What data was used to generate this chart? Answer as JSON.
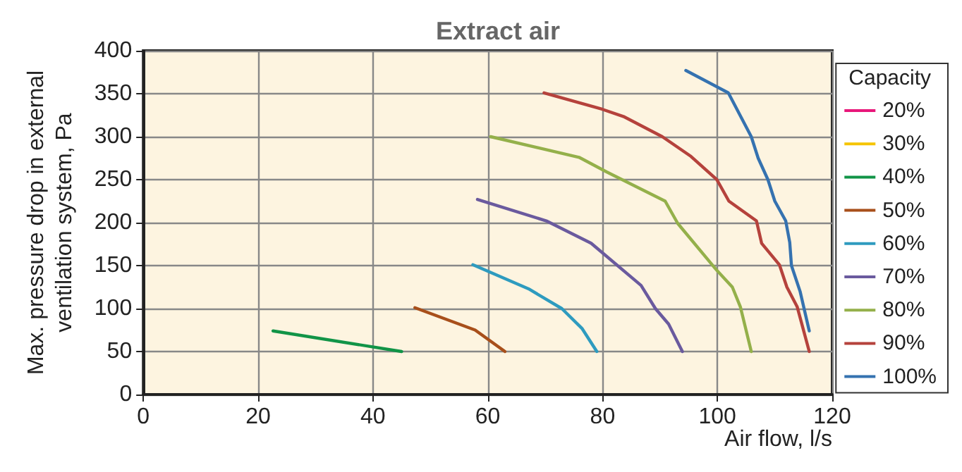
{
  "chart_data": {
    "type": "line",
    "title": "Extract air",
    "xlabel": "Air flow, l/s",
    "ylabel": "Max. pressure drop in external\nventilation system, Pa",
    "legend_title": "Capacity",
    "legend": "right",
    "grid": true,
    "marker": "none",
    "line_style": "solid",
    "xlim": [
      0,
      120
    ],
    "xticks": [
      0,
      20,
      40,
      60,
      80,
      100,
      120
    ],
    "ylim": [
      0,
      400
    ],
    "yticks": [
      0,
      50,
      100,
      150,
      200,
      250,
      300,
      350,
      400
    ],
    "series": [
      {
        "name": "20%",
        "color": "#e8187a"
      },
      {
        "name": "30%",
        "color": "#f5c400"
      },
      {
        "name": "40%",
        "color": "#119447",
        "x": [
          22.6,
          45
        ],
        "values": [
          74,
          50
        ]
      },
      {
        "name": "50%",
        "color": "#a84f1a",
        "x": [
          47.3,
          57.8,
          63
        ],
        "values": [
          101,
          75,
          50
        ]
      },
      {
        "name": "60%",
        "color": "#2e9bbf",
        "x": [
          57.4,
          67.1,
          72.9,
          76.4,
          79
        ],
        "values": [
          151,
          123,
          100,
          77,
          50
        ]
      },
      {
        "name": "70%",
        "color": "#6a5a9e",
        "x": [
          58.2,
          70.2,
          78,
          86.7,
          89.2,
          91.5,
          93.9
        ],
        "values": [
          227,
          202,
          176,
          127,
          100,
          82,
          50
        ]
      },
      {
        "name": "80%",
        "color": "#94b04a",
        "x": [
          60.5,
          75.9,
          80.7,
          90.9,
          93.1,
          99.7,
          102.6,
          104,
          105.9
        ],
        "values": [
          300,
          276,
          259,
          225,
          199,
          146,
          125,
          102,
          50
        ]
      },
      {
        "name": "90%",
        "color": "#b5423c",
        "x": [
          69.8,
          79.9,
          83.8,
          90.4,
          95.4,
          99.9,
          102,
          106.8,
          107.7,
          110.8,
          112.1,
          113.9,
          116
        ],
        "values": [
          351,
          332,
          323,
          300,
          277,
          250,
          225,
          202,
          176,
          151,
          125,
          102,
          50
        ]
      },
      {
        "name": "100%",
        "color": "#3572b0",
        "x": [
          94.5,
          101.9,
          105.9,
          107.1,
          108.8,
          110,
          111.9,
          112.6,
          112.9,
          114.4,
          116
        ],
        "values": [
          377,
          351,
          300,
          275,
          250,
          225,
          202,
          177,
          150,
          120,
          74
        ]
      }
    ]
  }
}
